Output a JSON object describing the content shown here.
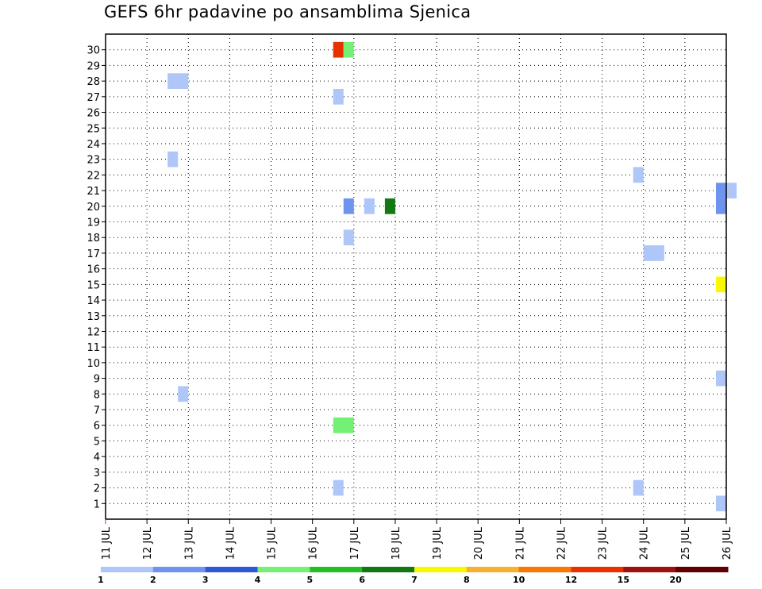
{
  "chart_data": {
    "type": "heatmap",
    "title": "GEFS 6hr padavine po ansamblima Sjenica",
    "xlabel": "",
    "ylabel": "",
    "y_members": [
      1,
      2,
      3,
      4,
      5,
      6,
      7,
      8,
      9,
      10,
      11,
      12,
      13,
      14,
      15,
      16,
      17,
      18,
      19,
      20,
      21,
      22,
      23,
      24,
      25,
      26,
      27,
      28,
      29,
      30
    ],
    "y_range": [
      0,
      31
    ],
    "x_ticks": [
      "11 JUL",
      "12 JUL",
      "13 JUL",
      "14 JUL",
      "15 JUL",
      "16 JUL",
      "17 JUL",
      "18 JUL",
      "19 JUL",
      "20 JUL",
      "21 JUL",
      "22 JUL",
      "23 JUL",
      "24 JUL",
      "25 JUL",
      "26 JUL"
    ],
    "x_unit": "days since 11 JUL 00Z, 6-hourly steps",
    "x_range": [
      0,
      15
    ],
    "grid": true,
    "legend_placement": "bottom",
    "colorbar": {
      "colors": [
        "#aec6f8",
        "#6f94f0",
        "#2f58d8",
        "#74f074",
        "#22c022",
        "#127812",
        "#f8f800",
        "#f8b030",
        "#f87800",
        "#e83000",
        "#a01010",
        "#600000"
      ],
      "labels": [
        "1",
        "2",
        "3",
        "4",
        "5",
        "6",
        "7",
        "8",
        "10",
        "12",
        "15",
        "20"
      ]
    },
    "cells": [
      {
        "member": 30,
        "x_start": 5.5,
        "x_end": 5.75,
        "cat": 10
      },
      {
        "member": 30,
        "x_start": 5.75,
        "x_end": 6.0,
        "cat": 4
      },
      {
        "member": 28,
        "x_start": 1.5,
        "x_end": 2.0,
        "cat": 1
      },
      {
        "member": 27,
        "x_start": 5.5,
        "x_end": 5.75,
        "cat": 1
      },
      {
        "member": 23,
        "x_start": 1.5,
        "x_end": 1.75,
        "cat": 1
      },
      {
        "member": 22,
        "x_start": 12.75,
        "x_end": 13.0,
        "cat": 1
      },
      {
        "member": 21,
        "x_start": 14.75,
        "x_end": 15.0,
        "cat": 2
      },
      {
        "member": 21,
        "x_start": 15.0,
        "x_end": 15.25,
        "cat": 1
      },
      {
        "member": 20,
        "x_start": 5.75,
        "x_end": 6.0,
        "cat": 2
      },
      {
        "member": 20,
        "x_start": 6.25,
        "x_end": 6.5,
        "cat": 1
      },
      {
        "member": 20,
        "x_start": 6.75,
        "x_end": 7.0,
        "cat": 6
      },
      {
        "member": 20,
        "x_start": 14.75,
        "x_end": 15.0,
        "cat": 2
      },
      {
        "member": 18,
        "x_start": 5.75,
        "x_end": 6.0,
        "cat": 1
      },
      {
        "member": 17,
        "x_start": 13.0,
        "x_end": 13.5,
        "cat": 1
      },
      {
        "member": 15,
        "x_start": 14.75,
        "x_end": 15.0,
        "cat": 7
      },
      {
        "member": 9,
        "x_start": 14.75,
        "x_end": 15.0,
        "cat": 1
      },
      {
        "member": 8,
        "x_start": 1.75,
        "x_end": 2.0,
        "cat": 1
      },
      {
        "member": 6,
        "x_start": 5.5,
        "x_end": 6.0,
        "cat": 4
      },
      {
        "member": 2,
        "x_start": 5.5,
        "x_end": 5.75,
        "cat": 1
      },
      {
        "member": 2,
        "x_start": 12.75,
        "x_end": 13.0,
        "cat": 1
      },
      {
        "member": 1,
        "x_start": 14.75,
        "x_end": 15.0,
        "cat": 1
      }
    ]
  }
}
